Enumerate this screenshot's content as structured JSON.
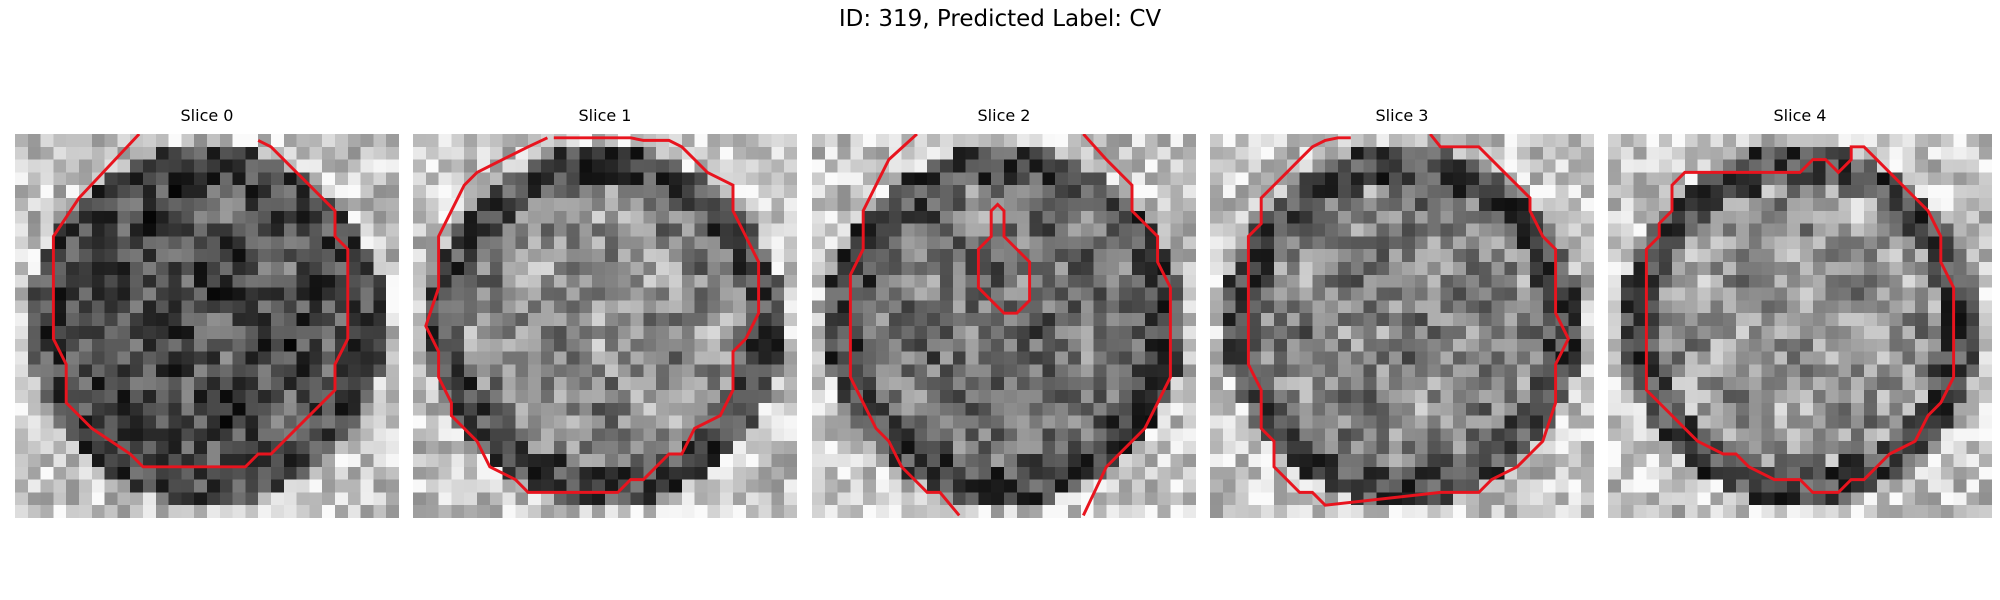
{
  "figure": {
    "title": "ID: 319, Predicted Label: CV",
    "grid_size": 30,
    "contour_color": "#e8141e",
    "colormap": "gray"
  },
  "panels": [
    {
      "title": "Slice 0"
    },
    {
      "title": "Slice 1"
    },
    {
      "title": "Slice 2"
    },
    {
      "title": "Slice 3"
    },
    {
      "title": "Slice 4"
    }
  ]
}
